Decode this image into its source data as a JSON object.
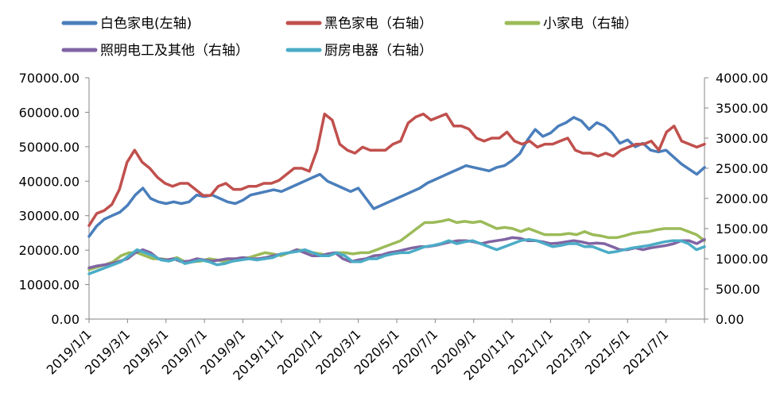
{
  "chart_data": {
    "type": "line",
    "x_labels": [
      "2019/1/1",
      "2019/3/1",
      "2019/5/1",
      "2019/7/1",
      "2019/9/1",
      "2019/11/1",
      "2020/1/1",
      "2020/3/1",
      "2020/5/1",
      "2020/7/1",
      "2020/9/1",
      "2020/11/1",
      "2021/1/1",
      "2021/3/1",
      "2021/5/1",
      "2021/7/1"
    ],
    "y_left": {
      "min": 0,
      "max": 70000,
      "ticks": [
        "0.00",
        "10000.00",
        "20000.00",
        "30000.00",
        "40000.00",
        "50000.00",
        "60000.00",
        "70000.00"
      ]
    },
    "y_right": {
      "min": 0,
      "max": 4000,
      "ticks": [
        "0.00",
        "500.00",
        "1000.00",
        "1500.00",
        "2000.00",
        "2500.00",
        "3000.00",
        "3500.00",
        "4000.00"
      ]
    },
    "legend": {
      "position": "top"
    },
    "series": [
      {
        "name": "白色家电(左轴)",
        "axis": "left",
        "color": "#4a7ebb",
        "values": [
          24000,
          27000,
          29000,
          30000,
          31000,
          33000,
          36000,
          38000,
          35000,
          34000,
          33500,
          34000,
          33500,
          34000,
          36000,
          35500,
          36000,
          35000,
          34000,
          33500,
          34500,
          36000,
          36500,
          37000,
          37500,
          37000,
          38000,
          39000,
          40000,
          41000,
          42000,
          40000,
          39000,
          38000,
          37000,
          38000,
          35000,
          32000,
          33000,
          34000,
          35000,
          36000,
          37000,
          38000,
          39500,
          40500,
          41500,
          42500,
          43500,
          44500,
          44000,
          43500,
          43000,
          44000,
          44500,
          46000,
          48000,
          52000,
          55000,
          53000,
          54000,
          56000,
          57000,
          58500,
          57500,
          55000,
          57000,
          56000,
          54000,
          51000,
          52000,
          50000,
          51000,
          49000,
          48500,
          49000,
          47000,
          45000,
          43500,
          42000,
          44000
        ]
      },
      {
        "name": "黑色家电（右轴）",
        "axis": "right",
        "color": "#c0504d",
        "values": [
          1550,
          1750,
          1800,
          1900,
          2150,
          2600,
          2800,
          2600,
          2500,
          2350,
          2250,
          2200,
          2250,
          2250,
          2150,
          2050,
          2050,
          2200,
          2250,
          2150,
          2150,
          2200,
          2200,
          2250,
          2250,
          2300,
          2400,
          2500,
          2500,
          2450,
          2800,
          3400,
          3300,
          2900,
          2800,
          2750,
          2850,
          2800,
          2800,
          2800,
          2900,
          2950,
          3250,
          3350,
          3400,
          3300,
          3350,
          3400,
          3200,
          3200,
          3150,
          3000,
          2950,
          3000,
          3000,
          3100,
          2950,
          2900,
          2950,
          2850,
          2900,
          2900,
          2950,
          3000,
          2800,
          2750,
          2750,
          2700,
          2750,
          2700,
          2800,
          2850,
          2900,
          2900,
          2950,
          2800,
          3100,
          3200,
          2950,
          2900,
          2850,
          2900
        ]
      },
      {
        "name": "小家电（右轴）",
        "axis": "right",
        "color": "#9bbb59",
        "values": [
          820,
          860,
          900,
          950,
          1050,
          1100,
          1100,
          1050,
          1000,
          1000,
          980,
          1020,
          950,
          950,
          960,
          1000,
          980,
          950,
          960,
          1000,
          1020,
          1060,
          1100,
          1080,
          1050,
          1100,
          1150,
          1130,
          1100,
          1080,
          1050,
          1100,
          1100,
          1080,
          1100,
          1100,
          1150,
          1200,
          1250,
          1300,
          1400,
          1500,
          1600,
          1600,
          1620,
          1650,
          1600,
          1620,
          1600,
          1620,
          1560,
          1500,
          1520,
          1500,
          1450,
          1500,
          1450,
          1400,
          1400,
          1400,
          1420,
          1400,
          1450,
          1400,
          1380,
          1350,
          1350,
          1380,
          1420,
          1440,
          1450,
          1480,
          1500,
          1500,
          1500,
          1450,
          1400,
          1300
        ]
      },
      {
        "name": "照明电工及其他（右轴）",
        "axis": "right",
        "color": "#8064a2",
        "values": [
          850,
          880,
          900,
          920,
          960,
          1000,
          1100,
          1150,
          1100,
          1000,
          980,
          1000,
          950,
          960,
          1000,
          980,
          960,
          980,
          1000,
          1000,
          1020,
          1000,
          1000,
          1020,
          1050,
          1080,
          1100,
          1150,
          1100,
          1050,
          1050,
          1080,
          1100,
          1000,
          950,
          980,
          1000,
          1050,
          1060,
          1100,
          1120,
          1150,
          1180,
          1200,
          1200,
          1220,
          1250,
          1280,
          1300,
          1300,
          1280,
          1250,
          1280,
          1300,
          1320,
          1350,
          1340,
          1300,
          1300,
          1280,
          1250,
          1260,
          1280,
          1300,
          1280,
          1250,
          1260,
          1250,
          1200,
          1150,
          1150,
          1180,
          1150,
          1180,
          1200,
          1220,
          1250,
          1300,
          1300,
          1250,
          1320
        ]
      },
      {
        "name": "厨房电器（右轴）",
        "axis": "right",
        "color": "#4bacc6",
        "values": [
          750,
          800,
          850,
          900,
          950,
          1050,
          1150,
          1100,
          1050,
          980,
          960,
          1000,
          920,
          950,
          980,
          950,
          900,
          920,
          960,
          980,
          1000,
          980,
          1000,
          1020,
          1080,
          1100,
          1120,
          1150,
          1100,
          1050,
          1050,
          1100,
          1050,
          950,
          950,
          1000,
          1000,
          1050,
          1080,
          1100,
          1100,
          1150,
          1200,
          1220,
          1250,
          1300,
          1250,
          1280,
          1300,
          1250,
          1200,
          1150,
          1200,
          1250,
          1300,
          1320,
          1300,
          1250,
          1200,
          1220,
          1250,
          1250,
          1200,
          1200,
          1150,
          1100,
          1120,
          1150,
          1180,
          1200,
          1220,
          1250,
          1280,
          1300,
          1300,
          1250,
          1150,
          1200
        ]
      }
    ]
  }
}
